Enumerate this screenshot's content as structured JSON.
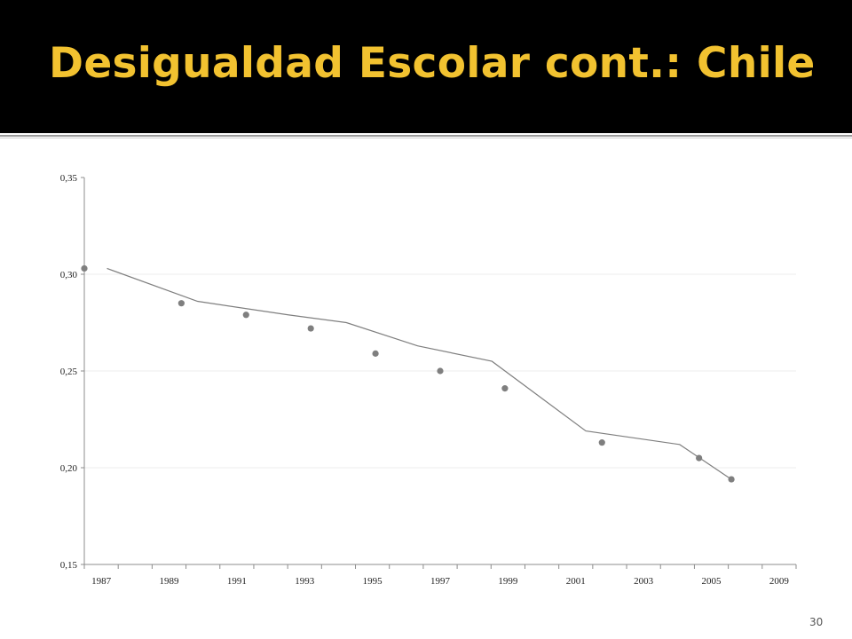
{
  "slide": {
    "title": "Desigualdad Escolar cont.: Chile",
    "page_number": "30"
  },
  "colors": {
    "title_bg": "#000000",
    "title_text": "#f2c230",
    "series": "#7f7f7f",
    "axis": "#8c8c8c",
    "grid": "#eeeeee"
  },
  "chart_data": {
    "type": "scatter",
    "title": "",
    "xlabel": "",
    "ylabel": "",
    "xlim": [
      1987,
      2009
    ],
    "ylim": [
      0.15,
      0.35
    ],
    "x_ticks": [
      "1987",
      "1989",
      "1991",
      "1993",
      "1995",
      "1997",
      "1999",
      "2001",
      "2003",
      "2005",
      "2009"
    ],
    "y_ticks": [
      "0,15",
      "0,20",
      "0,25",
      "0,30",
      "0,35"
    ],
    "y_tick_values": [
      0.15,
      0.2,
      0.25,
      0.3,
      0.35
    ],
    "grid": "horizontal",
    "legend": "none",
    "series": [
      {
        "kind": "points",
        "x": [
          1987,
          1990,
          1992,
          1994,
          1996,
          1998,
          2000,
          2003,
          2006,
          2007
        ],
        "y": [
          0.303,
          0.285,
          0.279,
          0.272,
          0.259,
          0.25,
          0.241,
          0.213,
          0.205,
          0.194
        ]
      },
      {
        "kind": "trend-line",
        "x": [
          1987.7,
          1990.5,
          1993.3,
          1995.1,
          1997.3,
          1999.6,
          2002.5,
          2005.4,
          2007
        ],
        "y": [
          0.303,
          0.286,
          0.279,
          0.275,
          0.263,
          0.255,
          0.219,
          0.212,
          0.194
        ]
      }
    ]
  }
}
